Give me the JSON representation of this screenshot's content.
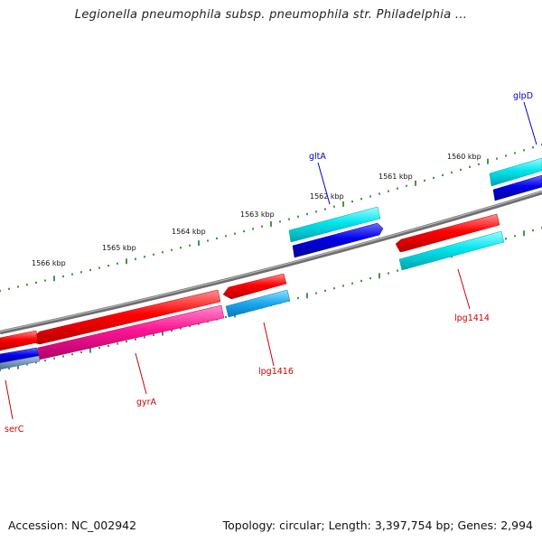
{
  "title": "Legionella pneumophila subsp. pneumophila str. Philadelphia ...",
  "footer": {
    "accession": "Accession: NC_002942",
    "summary": "Topology: circular; Length: 3,397,754 bp; Genes: 2,994"
  },
  "kbp_labels": [
    "1566 kbp",
    "1565 kbp",
    "1564 kbp",
    "1563 kbp",
    "1562 kbp",
    "1561 kbp",
    "1560 kbp"
  ],
  "genes_upper": [
    "glpD",
    "gltA"
  ],
  "genes_lower": [
    "lpg1414",
    "lpg1416",
    "gyrA",
    "serC"
  ],
  "colors": {
    "backbone": "#777777",
    "tick": "#1a7a1a",
    "gene_red": "#ff0000",
    "gene_blue": "#0000ee",
    "gene_cyan": "#00e5ee",
    "gene_pink": "#ff1493",
    "label_blue": "#0000cc",
    "label_red": "#cc0000"
  }
}
